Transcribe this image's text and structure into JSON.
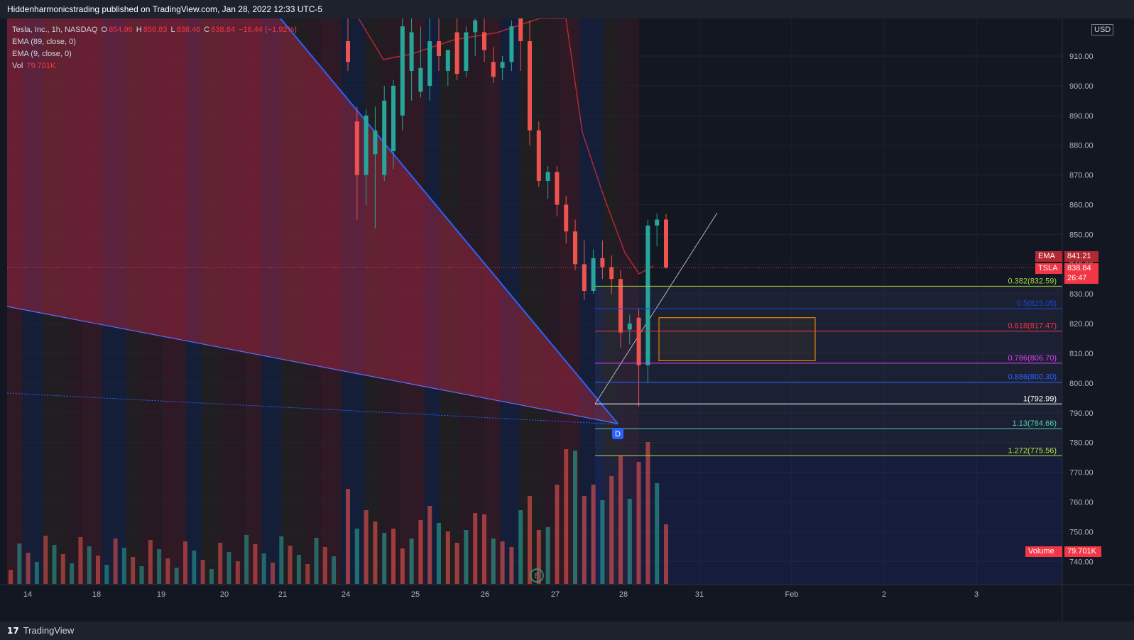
{
  "header": {
    "publisher_line": "Hiddenharmonicstrading published on TradingView.com, Jan 28, 2022 12:33 UTC-5"
  },
  "legend": {
    "symbol": "Tesla, Inc., 1h, NASDAQ",
    "o_label": "O",
    "o_value": "854.96",
    "h_label": "H",
    "h_value": "856.83",
    "l_label": "L",
    "l_value": "838.46",
    "c_label": "C",
    "c_value": "838.84",
    "change": "−16.44 (−1.92%)",
    "ema89_label": "EMA (89, close, 0)",
    "ema9_label": "EMA (9, close, 0)",
    "vol_label": "Vol",
    "vol_value": "79.701K"
  },
  "price_scale": {
    "currency": "USD",
    "ema_tag_label": "EMA",
    "ema_tag_value": "841.21",
    "symbol_tag_label": "TSLA",
    "symbol_tag_value": "838.84",
    "countdown": "26:47",
    "volume_tag_label": "Volume",
    "volume_tag_value": "79.701K"
  },
  "colors": {
    "bg": "#131722",
    "up": "#26a69a",
    "down": "#ef5350",
    "ema89": "#b22833",
    "trendline": "#2962ff"
  },
  "chart_data": {
    "type": "candlestick",
    "title": "Tesla, Inc., 1h, NASDAQ",
    "yaxis": {
      "ticks": [
        740,
        750,
        760,
        770,
        780,
        790,
        800,
        810,
        820,
        830,
        840,
        850,
        860,
        870,
        880,
        890,
        900,
        910
      ],
      "ylim": [
        732,
        922
      ]
    },
    "xaxis": {
      "ticks": [
        "14",
        "18",
        "19",
        "20",
        "21",
        "24",
        "25",
        "26",
        "27",
        "28",
        "31",
        "Feb",
        "2",
        "3"
      ]
    },
    "last_price": 838.84,
    "ema_value": 841.21,
    "fib_levels": [
      {
        "ratio": "0.382",
        "price": 832.59,
        "label": "0.382(832.59)",
        "color": "#a5d63f"
      },
      {
        "ratio": "0.5",
        "price": 825.05,
        "label": "0.5(825.05)",
        "color": "#1848cc"
      },
      {
        "ratio": "0.618",
        "price": 817.47,
        "label": "0.618(817.47)",
        "color": "#f23645"
      },
      {
        "ratio": "0.786",
        "price": 806.7,
        "label": "0.786(806.70)",
        "color": "#e040fb"
      },
      {
        "ratio": "0.886",
        "price": 800.3,
        "label": "0.886(800.30)",
        "color": "#2962ff"
      },
      {
        "ratio": "1",
        "price": 792.99,
        "label": "1(792.99)",
        "color": "#ffffff"
      },
      {
        "ratio": "1.13",
        "price": 784.66,
        "label": "1.13(784.66)",
        "color": "#4dd0b4"
      },
      {
        "ratio": "1.272",
        "price": 775.56,
        "label": "1.272(775.56)",
        "color": "#b7e04a"
      }
    ],
    "pattern_point_label": "D",
    "earnings_marker_label": "E",
    "candles": [
      {
        "o": 915,
        "h": 925,
        "l": 905,
        "c": 908
      },
      {
        "o": 888,
        "h": 893,
        "l": 855,
        "c": 870
      },
      {
        "o": 870,
        "h": 892,
        "l": 860,
        "c": 890
      },
      {
        "o": 877,
        "h": 893,
        "l": 852,
        "c": 885
      },
      {
        "o": 870,
        "h": 900,
        "l": 868,
        "c": 895
      },
      {
        "o": 878,
        "h": 902,
        "l": 872,
        "c": 900
      },
      {
        "o": 890,
        "h": 925,
        "l": 885,
        "c": 920
      },
      {
        "o": 905,
        "h": 925,
        "l": 895,
        "c": 918
      },
      {
        "o": 898,
        "h": 920,
        "l": 896,
        "c": 906
      },
      {
        "o": 900,
        "h": 925,
        "l": 895,
        "c": 915
      },
      {
        "o": 915,
        "h": 925,
        "l": 905,
        "c": 910
      },
      {
        "o": 905,
        "h": 912,
        "l": 900,
        "c": 912
      },
      {
        "o": 918,
        "h": 925,
        "l": 902,
        "c": 904
      },
      {
        "o": 905,
        "h": 920,
        "l": 903,
        "c": 918
      },
      {
        "o": 918,
        "h": 925,
        "l": 910,
        "c": 922
      },
      {
        "o": 918,
        "h": 925,
        "l": 908,
        "c": 912
      },
      {
        "o": 908,
        "h": 913,
        "l": 901,
        "c": 903
      },
      {
        "o": 906,
        "h": 910,
        "l": 902,
        "c": 908
      },
      {
        "o": 908,
        "h": 922,
        "l": 905,
        "c": 920
      },
      {
        "o": 925,
        "h": 930,
        "l": 905,
        "c": 915
      },
      {
        "o": 915,
        "h": 922,
        "l": 880,
        "c": 885
      },
      {
        "o": 885,
        "h": 888,
        "l": 866,
        "c": 868
      },
      {
        "o": 868,
        "h": 873,
        "l": 862,
        "c": 871
      },
      {
        "o": 871,
        "h": 873,
        "l": 856,
        "c": 860
      },
      {
        "o": 860,
        "h": 863,
        "l": 847,
        "c": 851
      },
      {
        "o": 851,
        "h": 855,
        "l": 838,
        "c": 840
      },
      {
        "o": 840,
        "h": 848,
        "l": 828,
        "c": 831
      },
      {
        "o": 831,
        "h": 845,
        "l": 830,
        "c": 842
      },
      {
        "o": 842,
        "h": 848,
        "l": 835,
        "c": 839
      },
      {
        "o": 839,
        "h": 843,
        "l": 830,
        "c": 835
      },
      {
        "o": 835,
        "h": 838,
        "l": 812,
        "c": 817
      },
      {
        "o": 818,
        "h": 823,
        "l": 813,
        "c": 820
      },
      {
        "o": 822,
        "h": 825,
        "l": 792,
        "c": 806
      },
      {
        "o": 806,
        "h": 855,
        "l": 800,
        "c": 853
      },
      {
        "o": 853,
        "h": 857,
        "l": 846,
        "c": 855
      },
      {
        "o": 855,
        "h": 856.83,
        "l": 838.46,
        "c": 838.84
      }
    ],
    "volume": {
      "values": [
        67,
        39,
        52,
        44,
        36,
        39,
        25,
        32,
        45,
        55,
        43,
        37,
        29,
        38,
        50,
        49,
        32,
        30,
        26,
        52,
        62,
        38,
        40,
        70,
        95,
        94,
        62,
        70,
        59,
        76,
        90,
        60,
        86,
        100,
        71,
        42
      ],
      "ylim": [
        0,
        100
      ]
    }
  }
}
